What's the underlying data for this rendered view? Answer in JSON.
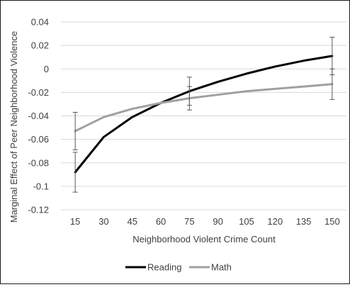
{
  "chart_data": {
    "type": "line",
    "title": "",
    "xlabel": "Neighborhood  Violent Crime Count",
    "ylabel": "Marginal Effect of Peer Neighborhood  Violence",
    "x": [
      15,
      30,
      45,
      60,
      75,
      90,
      105,
      120,
      135,
      150
    ],
    "x_tick_labels": [
      "15",
      "30",
      "45",
      "60",
      "75",
      "90",
      "105",
      "120",
      "135",
      "150"
    ],
    "ylim": [
      -0.12,
      0.04
    ],
    "y_ticks": [
      0.04,
      0.02,
      0,
      -0.02,
      -0.04,
      -0.06,
      -0.08,
      -0.1,
      -0.12
    ],
    "y_tick_labels": [
      "0.04",
      "0.02",
      "0",
      "-0.02",
      "-0.04",
      "-0.06",
      "-0.08",
      "-0.1",
      "-0.12"
    ],
    "grid": "horizontal",
    "legend_position": "bottom",
    "series": [
      {
        "name": "Reading",
        "color": "#000000",
        "values": [
          -0.088,
          -0.058,
          -0.041,
          -0.029,
          -0.019,
          -0.011,
          -0.004,
          0.002,
          0.007,
          0.011
        ],
        "error_bars": [
          {
            "x": 15,
            "low": -0.105,
            "high": -0.071
          },
          {
            "x": 75,
            "low": -0.031,
            "high": -0.007
          },
          {
            "x": 150,
            "low": -0.005,
            "high": 0.027
          }
        ]
      },
      {
        "name": "Math",
        "color": "#a0a0a0",
        "values": [
          -0.053,
          -0.041,
          -0.034,
          -0.029,
          -0.025,
          -0.022,
          -0.019,
          -0.017,
          -0.015,
          -0.013
        ],
        "error_bars": [
          {
            "x": 15,
            "low": -0.069,
            "high": -0.037
          },
          {
            "x": 75,
            "low": -0.035,
            "high": -0.015
          },
          {
            "x": 150,
            "low": -0.026,
            "high": 0.0
          }
        ]
      }
    ]
  }
}
